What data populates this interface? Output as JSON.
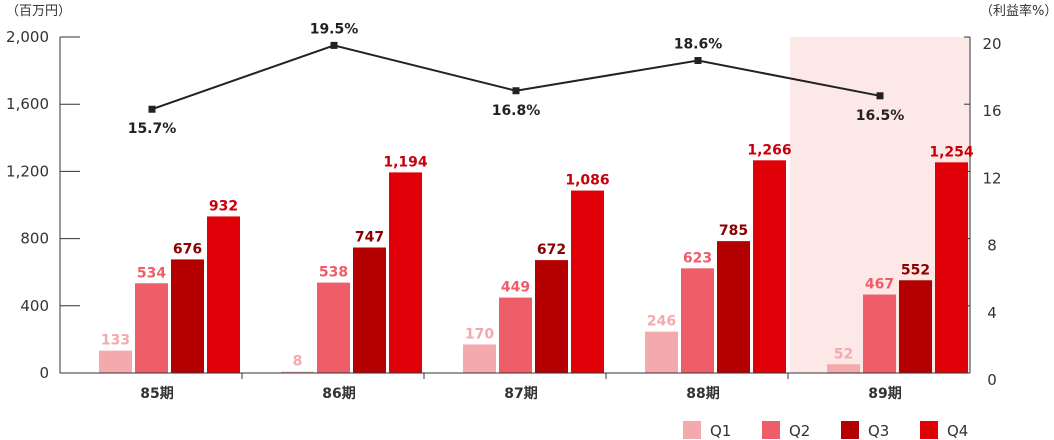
{
  "chart_data": {
    "type": "bar",
    "left_axis_unit": "（百万円）",
    "right_axis_unit": "（利益率%）",
    "categories": [
      "85期",
      "86期",
      "87期",
      "88期",
      "89期"
    ],
    "series": [
      {
        "name": "Q1",
        "values": [
          133,
          8,
          170,
          246,
          52
        ],
        "labels": [
          "133",
          "8",
          "170",
          "246",
          "52"
        ],
        "color": "#f4a9ad",
        "label_color": "#f4a9ad"
      },
      {
        "name": "Q2",
        "values": [
          534,
          538,
          449,
          623,
          467
        ],
        "labels": [
          "534",
          "538",
          "449",
          "623",
          "467"
        ],
        "color": "#ee5e68",
        "label_color": "#ee5e68"
      },
      {
        "name": "Q3",
        "values": [
          676,
          747,
          672,
          785,
          552
        ],
        "labels": [
          "676",
          "747",
          "672",
          "785",
          "552"
        ],
        "color": "#b40000",
        "label_color": "#8c0000"
      },
      {
        "name": "Q4",
        "values": [
          932,
          1194,
          1086,
          1266,
          1254
        ],
        "labels": [
          "932",
          "1,194",
          "1,086",
          "1,266",
          "1,254"
        ],
        "color": "#e00007",
        "label_color": "#c8000a"
      }
    ],
    "profit_rate": {
      "values": [
        15.7,
        19.5,
        16.8,
        18.6,
        16.5
      ],
      "labels": [
        "15.7%",
        "19.5%",
        "16.8%",
        "18.6%",
        "16.5%"
      ],
      "label_side": [
        "below",
        "above",
        "below",
        "above",
        "below"
      ],
      "color": "#222222"
    },
    "ylim": [
      0,
      2000
    ],
    "yticks": [
      "2,000",
      "1,600",
      "1,200",
      "800",
      "400",
      "0"
    ],
    "y2lim": [
      0,
      20
    ],
    "y2ticks": [
      "20",
      "16",
      "12",
      "8",
      "4",
      "0"
    ],
    "highlight_category": "89期",
    "highlight_color": "#fde8e8",
    "legend_position": "bottom-right",
    "grid": false
  }
}
